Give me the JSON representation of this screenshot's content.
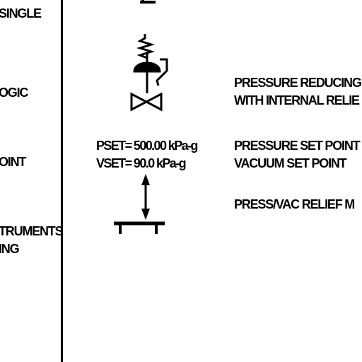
{
  "legend_left": {
    "line_1": "SINGLE",
    "line_2": "OGIC",
    "line_3": "OINT",
    "line_4a": "TRUMENTS",
    "line_4b": "ING"
  },
  "symbols": {
    "pressure_reducing_valve": {
      "description_line_1": "PRESSURE REDUCING",
      "description_line_2": "WITH INTERNAL RELIE"
    },
    "relief_valve": {
      "pset_label": "PSET= 500.00 kPa-g",
      "vset_label": "VSET= 90.0 kPa-g",
      "description_line_1": "PRESSURE SET POINT",
      "description_line_2": "VACUUM SET POINT",
      "description_line_3": "PRESS/VAC RELIEF M"
    }
  },
  "colors": {
    "ink": "#000000",
    "paper": "#ffffff"
  }
}
